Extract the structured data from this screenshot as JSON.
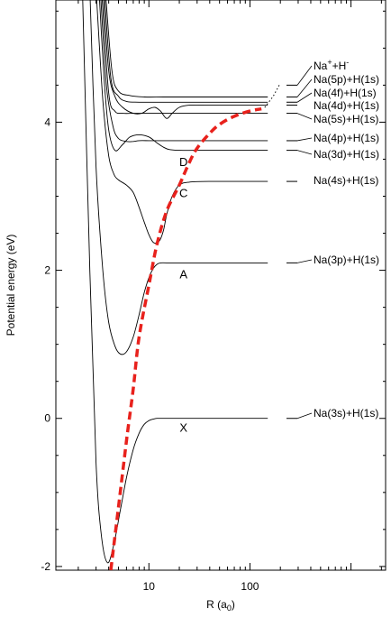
{
  "chart_data": {
    "type": "line",
    "xlabel": "R (a",
    "xlabel_sub": "0",
    "xlabel_close": ")",
    "ylabel": "Potential energy (eV)",
    "xscale": "log",
    "xlim": [
      1.2,
      2200
    ],
    "ylim": [
      -2.05,
      5.65
    ],
    "x_ticks": [
      {
        "value": 10,
        "label": "10"
      },
      {
        "value": 100,
        "label": "100"
      }
    ],
    "y_ticks": [
      {
        "value": -2,
        "label": "-2"
      },
      {
        "value": 0,
        "label": "0"
      },
      {
        "value": 2,
        "label": "2"
      },
      {
        "value": 4,
        "label": "4"
      }
    ],
    "grid": false,
    "series": [
      {
        "state": "X",
        "x": [
          2.2,
          2.6,
          3.0,
          3.4,
          3.9,
          4.5,
          5.2,
          6.0,
          7.0,
          8.0,
          9.0,
          10,
          11,
          12,
          14,
          18,
          30,
          60,
          150
        ],
        "y": [
          5.8,
          2.0,
          -0.6,
          -1.6,
          -1.95,
          -1.7,
          -1.25,
          -0.8,
          -0.42,
          -0.2,
          -0.08,
          -0.03,
          -0.01,
          0.0,
          0.0,
          0.0,
          0.0,
          0.0,
          0.0
        ]
      },
      {
        "state": "A",
        "x": [
          2.6,
          3.0,
          3.5,
          4.0,
          4.6,
          5.2,
          6.0,
          7.0,
          8.0,
          9.0,
          10,
          11,
          12,
          13,
          15,
          20,
          40,
          150
        ],
        "y": [
          5.8,
          3.4,
          2.0,
          1.3,
          0.98,
          0.87,
          0.9,
          1.1,
          1.4,
          1.7,
          1.9,
          2.02,
          2.08,
          2.1,
          2.1,
          2.1,
          2.1,
          2.1
        ]
      },
      {
        "state": "C",
        "x": [
          3.0,
          3.5,
          4.0,
          4.5,
          5.0,
          6.0,
          7.0,
          8.0,
          9.0,
          10,
          11,
          12,
          13,
          14,
          15,
          17,
          20,
          25,
          40,
          150
        ],
        "y": [
          5.8,
          4.3,
          3.55,
          3.3,
          3.22,
          3.15,
          3.05,
          2.85,
          2.65,
          2.48,
          2.38,
          2.37,
          2.42,
          2.55,
          2.75,
          3.0,
          3.15,
          3.19,
          3.2,
          3.2
        ]
      },
      {
        "state": "D",
        "x": [
          3.2,
          3.6,
          4.0,
          4.6,
          5.5,
          6.5,
          8.0,
          10,
          12,
          14,
          16,
          20,
          30,
          60,
          150
        ],
        "y": [
          5.8,
          4.6,
          3.9,
          3.62,
          3.7,
          3.8,
          3.83,
          3.8,
          3.72,
          3.66,
          3.63,
          3.62,
          3.62,
          3.62,
          3.62
        ]
      },
      {
        "state": "Na(4p)",
        "x": [
          3.3,
          3.8,
          4.4,
          5.0,
          6.0,
          7.0,
          8.0,
          10,
          12,
          15,
          20,
          30,
          60,
          150
        ],
        "y": [
          5.8,
          4.5,
          3.95,
          3.78,
          3.74,
          3.74,
          3.75,
          3.75,
          3.75,
          3.75,
          3.75,
          3.75,
          3.75,
          3.75
        ]
      },
      {
        "state": "Na(5s)",
        "x": [
          3.4,
          4.0,
          4.6,
          5.5,
          7.0,
          9.0,
          12,
          15,
          20,
          30,
          60,
          150
        ],
        "y": [
          5.8,
          4.4,
          4.15,
          4.12,
          4.12,
          4.12,
          4.12,
          4.12,
          4.12,
          4.12,
          4.12,
          4.12
        ]
      },
      {
        "state": "Na(4d)",
        "x": [
          3.5,
          4.0,
          4.6,
          5.5,
          7.0,
          8.5,
          10,
          11.5,
          13,
          15,
          17,
          20,
          25,
          40,
          150
        ],
        "y": [
          5.8,
          4.7,
          4.35,
          4.2,
          4.12,
          4.12,
          4.18,
          4.2,
          4.15,
          4.05,
          4.12,
          4.2,
          4.23,
          4.23,
          4.23
        ]
      },
      {
        "state": "Na(4f)",
        "x": [
          3.6,
          4.2,
          5.0,
          6.0,
          8.0,
          12,
          20,
          40,
          150
        ],
        "y": [
          5.8,
          4.6,
          4.35,
          4.28,
          4.27,
          4.27,
          4.27,
          4.27,
          4.27
        ]
      },
      {
        "state": "Na(5p)",
        "x": [
          3.7,
          4.3,
          5.0,
          6.5,
          9.0,
          14,
          25,
          50,
          150
        ],
        "y": [
          5.8,
          4.7,
          4.42,
          4.36,
          4.34,
          4.34,
          4.34,
          4.34,
          4.34
        ]
      },
      {
        "state": "Na+ + H-",
        "color": "#e8211c",
        "dashed": true,
        "x": [
          4.2,
          5.0,
          6.0,
          7.0,
          8.0,
          10,
          12,
          15,
          20,
          25,
          30,
          40,
          50,
          70,
          100,
          130
        ],
        "y": [
          -2.05,
          -1.2,
          -0.3,
          0.4,
          1.1,
          1.8,
          2.35,
          2.8,
          3.15,
          3.45,
          3.65,
          3.85,
          3.97,
          4.08,
          4.15,
          4.18
        ]
      }
    ],
    "asymptotes": [
      {
        "y": 0.0,
        "label": "Na(3s)+H(1s)"
      },
      {
        "y": 2.1,
        "label": "Na(3p)+H(1s)"
      },
      {
        "y": 3.2,
        "label": "Na(4s)+H(1s)"
      },
      {
        "y": 3.62,
        "label": "Na(3d)+H(1s)"
      },
      {
        "y": 3.75,
        "label": "Na(4p)+H(1s)"
      },
      {
        "y": 4.12,
        "label": "Na(5s)+H(1s)"
      },
      {
        "y": 4.23,
        "label": "Na(4d)+H(1s)"
      },
      {
        "y": 4.27,
        "label": "Na(4f)+H(1s)"
      },
      {
        "y": 4.34,
        "label": "Na(5p)+H(1s)"
      },
      {
        "y": 4.5,
        "label_base": "Na",
        "label_sup1": "+",
        "label_mid": "+H",
        "label_sup2": "-"
      }
    ],
    "state_labels": [
      {
        "text": "X",
        "x": 22,
        "y": -0.12
      },
      {
        "text": "A",
        "x": 22,
        "y": 1.95
      },
      {
        "text": "C",
        "x": 22,
        "y": 3.05
      },
      {
        "text": "D",
        "x": 22,
        "y": 3.47
      }
    ]
  }
}
